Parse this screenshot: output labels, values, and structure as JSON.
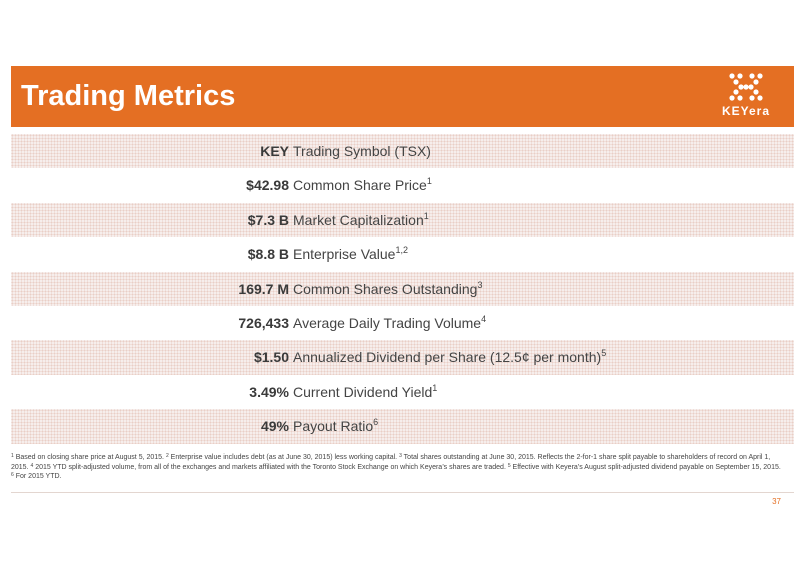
{
  "header": {
    "title": "Trading Metrics",
    "logo_text": "KEYera"
  },
  "colors": {
    "accent": "#e46f23",
    "row_shade": "#f6eeec"
  },
  "rows": [
    {
      "value": "KEY",
      "label": "Trading Symbol (TSX)",
      "sup": "",
      "shaded": true
    },
    {
      "value": "$42.98",
      "label": "Common Share Price",
      "sup": "1",
      "shaded": false
    },
    {
      "value": "$7.3 B",
      "label": "Market Capitalization",
      "sup": "1",
      "shaded": true
    },
    {
      "value": "$8.8 B",
      "label": "Enterprise Value",
      "sup": "1,2",
      "shaded": false
    },
    {
      "value": "169.7 M",
      "label": "Common Shares Outstanding",
      "sup": "3",
      "shaded": true
    },
    {
      "value": "726,433",
      "label": "Average Daily Trading Volume",
      "sup": "4",
      "shaded": false
    },
    {
      "value": "$1.50",
      "label": "Annualized Dividend per Share (12.5¢ per month)",
      "sup": "5",
      "shaded": true
    },
    {
      "value": "3.49%",
      "label": "Current Dividend Yield",
      "sup": "1",
      "shaded": false
    },
    {
      "value": "49%",
      "label": "Payout Ratio",
      "sup": "6",
      "shaded": true
    }
  ],
  "footnotes": [
    {
      "num": "1",
      "text": " Based on closing share price at August 5, 2015.  "
    },
    {
      "num": "2",
      "text": " Enterprise value includes debt (as at June 30, 2015) less working capital.   "
    },
    {
      "num": "3",
      "text": " Total shares outstanding at June 30, 2015. Reflects the 2-for-1 share split payable to shareholders of record on April 1, 2015.  "
    },
    {
      "num": "4",
      "text": " 2015 YTD split-adjusted volume, from all of the exchanges and markets affiliated with the Toronto Stock Exchange on which Keyera’s shares are traded.  "
    },
    {
      "num": "5",
      "text": " Effective with Keyera’s August split-adjusted dividend payable on September 15, 2015.  "
    },
    {
      "num": "6",
      "text": " For 2015 YTD."
    }
  ],
  "page_number": "37"
}
